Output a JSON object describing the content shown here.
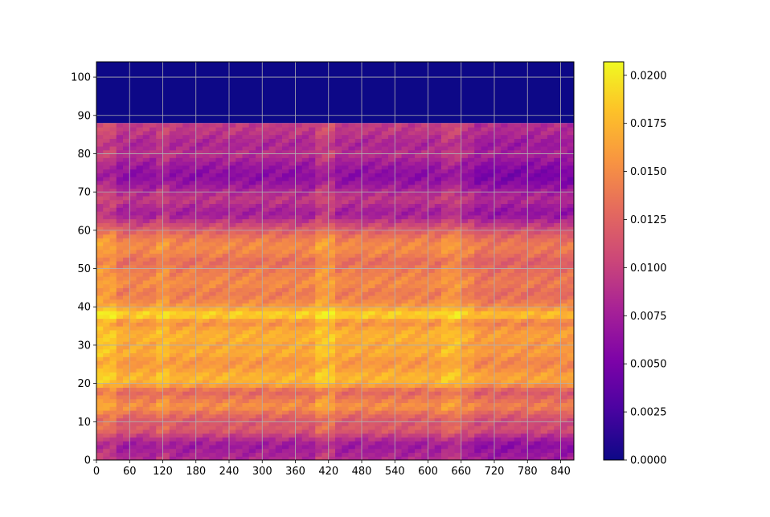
{
  "chart_data": {
    "type": "heatmap",
    "title": "",
    "xlabel": "",
    "ylabel": "",
    "xlim": [
      0,
      864
    ],
    "ylim": [
      0,
      104
    ],
    "x_ticks": [
      "0",
      "60",
      "120",
      "180",
      "240",
      "300",
      "360",
      "420",
      "480",
      "540",
      "600",
      "660",
      "720",
      "780",
      "840"
    ],
    "y_ticks": [
      "0",
      "10",
      "20",
      "30",
      "40",
      "50",
      "60",
      "70",
      "80",
      "90",
      "100"
    ],
    "grid": true,
    "colormap": "plasma",
    "colorbar": {
      "min": 0.0,
      "max": 0.0207,
      "ticks": [
        "0.0000",
        "0.0025",
        "0.0050",
        "0.0075",
        "0.0100",
        "0.0125",
        "0.0150",
        "0.0175",
        "0.0200"
      ]
    },
    "data_rows_end_y": 88,
    "empty_region": {
      "y_from": 88,
      "y_to": 104,
      "value": 0.0
    },
    "row_profile": {
      "y": [
        0,
        2,
        4,
        6,
        8,
        10,
        12,
        14,
        16,
        18,
        20,
        22,
        24,
        26,
        28,
        30,
        32,
        34,
        36,
        38,
        40,
        42,
        44,
        46,
        48,
        50,
        52,
        54,
        56,
        58,
        60,
        62,
        64,
        66,
        68,
        70,
        72,
        74,
        76,
        78,
        80,
        82,
        84,
        86,
        88
      ],
      "value": [
        0.0085,
        0.0078,
        0.007,
        0.0092,
        0.012,
        0.0115,
        0.013,
        0.0155,
        0.014,
        0.0125,
        0.017,
        0.0175,
        0.016,
        0.0155,
        0.017,
        0.0165,
        0.0172,
        0.0168,
        0.015,
        0.0195,
        0.016,
        0.0145,
        0.014,
        0.015,
        0.0145,
        0.014,
        0.013,
        0.0145,
        0.015,
        0.014,
        0.012,
        0.01,
        0.0075,
        0.008,
        0.0095,
        0.0085,
        0.007,
        0.006,
        0.0065,
        0.0075,
        0.009,
        0.008,
        0.0085,
        0.0095,
        0.0095
      ]
    },
    "column_modifiers": [
      {
        "x": [
          0,
          40
        ],
        "delta": 0.0015
      },
      {
        "x": [
          110,
          130
        ],
        "delta": 0.001
      },
      {
        "x": [
          400,
          430
        ],
        "delta": 0.0015
      },
      {
        "x": [
          620,
          660
        ],
        "delta": 0.001
      },
      {
        "x": [
          690,
          864
        ],
        "delta": -0.001
      }
    ]
  }
}
